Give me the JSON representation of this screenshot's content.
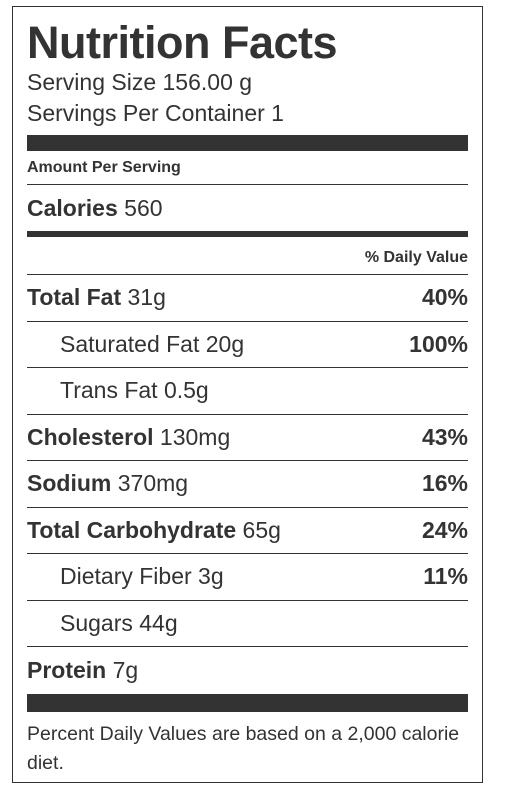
{
  "label": {
    "title": "Nutrition Facts",
    "serving_size": "Serving Size 156.00 g",
    "servings_per_container": "Servings Per Container 1",
    "amount_per_serving": "Amount Per Serving",
    "calories_label": "Calories",
    "calories_value": "560",
    "daily_value_header": "% Daily Value",
    "nutrients": [
      {
        "name": "Total Fat",
        "amount": "31g",
        "dv": "40%"
      },
      {
        "name": "Saturated Fat",
        "amount": "20g",
        "dv": "100%"
      },
      {
        "name": "Trans Fat",
        "amount": "0.5g",
        "dv": ""
      },
      {
        "name": "Cholesterol",
        "amount": "130mg",
        "dv": "43%"
      },
      {
        "name": "Sodium",
        "amount": "370mg",
        "dv": "16%"
      },
      {
        "name": "Total Carbohydrate",
        "amount": "65g",
        "dv": "24%"
      },
      {
        "name": "Dietary Fiber",
        "amount": "3g",
        "dv": "11%"
      },
      {
        "name": "Sugars",
        "amount": "44g",
        "dv": ""
      },
      {
        "name": "Protein",
        "amount": "7g",
        "dv": ""
      }
    ],
    "footnote": "Percent Daily Values are based on a 2,000 calorie diet."
  }
}
